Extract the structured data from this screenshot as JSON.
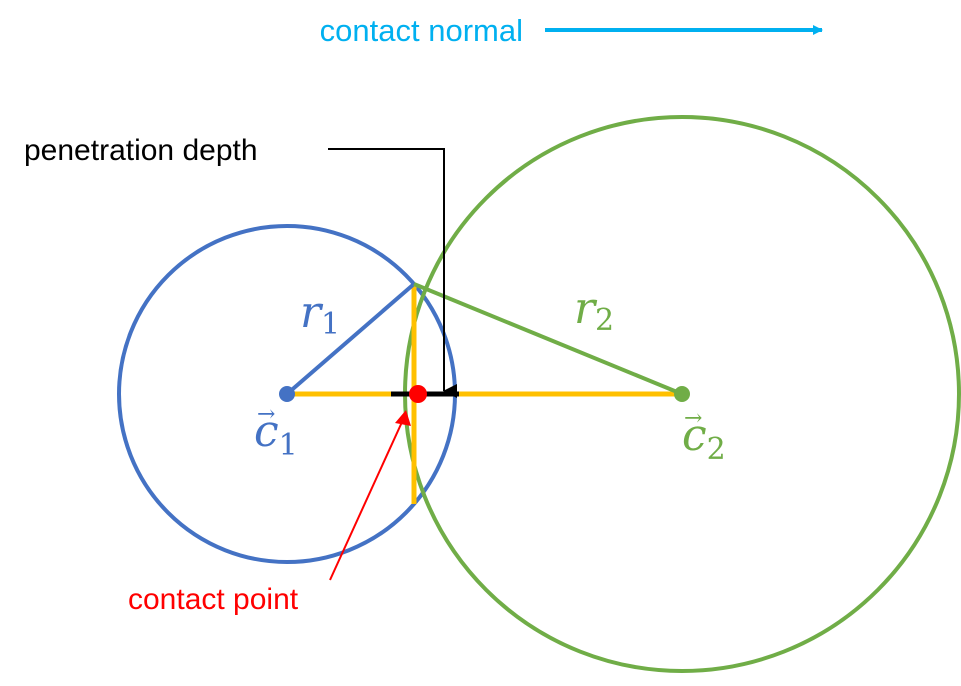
{
  "labels": {
    "contact_normal": "contact normal",
    "penetration_depth": "penetration depth",
    "contact_point": "contact point",
    "r1": {
      "base": "r",
      "sub": "1"
    },
    "r2": {
      "base": "r",
      "sub": "2"
    },
    "c1": {
      "arrow": "→",
      "base": "c",
      "sub": "1"
    },
    "c2": {
      "arrow": "→",
      "base": "c",
      "sub": "2"
    }
  },
  "colors": {
    "body_1": "#4472C4",
    "body_2": "#70AD47",
    "axis": "#FFC000",
    "depth": "#000000",
    "contact": "#FF0000",
    "normal": "#00B0F0",
    "text": "#000000"
  }
}
